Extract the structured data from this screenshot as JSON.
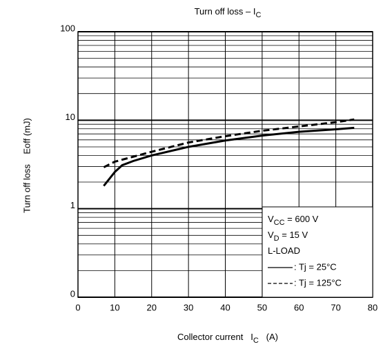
{
  "chart_data": {
    "type": "line",
    "title": [
      "Turn off loss – I",
      "C"
    ],
    "x_label": [
      "Collector current   I",
      "C",
      "   (A)"
    ],
    "y_label": "Turn off loss    Eoff (mJ)",
    "xlim": [
      0,
      80
    ],
    "xticks": [
      0,
      10,
      20,
      30,
      40,
      50,
      60,
      70,
      80
    ],
    "ylim": [
      0.1,
      100
    ],
    "yscale": "log",
    "yticks": [
      {
        "value": 0.1,
        "label": "0"
      },
      1,
      10,
      100
    ],
    "y_minor_ticks": [
      0.2,
      0.3,
      0.4,
      0.5,
      0.6,
      0.7,
      0.8,
      0.9,
      2,
      3,
      4,
      5,
      6,
      7,
      8,
      9,
      20,
      30,
      40,
      50,
      60,
      70,
      80,
      90
    ],
    "grid": true,
    "conditions": [
      [
        "V",
        "CC",
        " = 600 V"
      ],
      [
        "V",
        "D",
        " = 15 V"
      ],
      [
        "L-LOAD"
      ]
    ],
    "legend": "lower right",
    "series": [
      {
        "name": ": Tj = 25°C",
        "color": "#000000",
        "dash": "solid",
        "x": [
          7,
          10,
          12,
          15,
          20,
          30,
          40,
          50,
          60,
          70,
          75
        ],
        "values": [
          1.81,
          2.6,
          3.1,
          3.46,
          4.0,
          5.0,
          5.9,
          6.7,
          7.4,
          7.9,
          8.2
        ]
      },
      {
        "name": ": Tj = 125°C",
        "color": "#000000",
        "dash": "dashed",
        "x": [
          7,
          10,
          20,
          30,
          40,
          50,
          60,
          70,
          75
        ],
        "values": [
          2.94,
          3.4,
          4.4,
          5.6,
          6.6,
          7.6,
          8.5,
          9.5,
          10.2
        ]
      }
    ]
  }
}
